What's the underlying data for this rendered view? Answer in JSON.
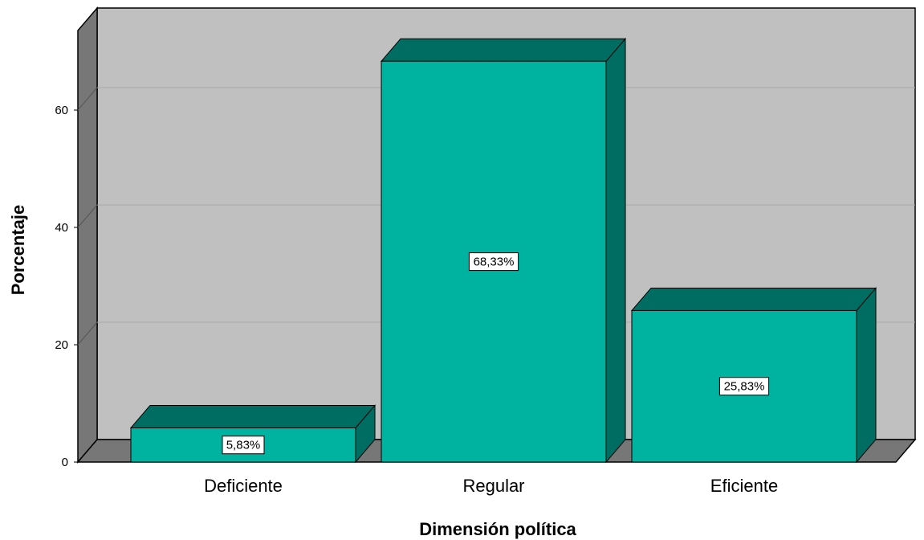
{
  "chart_data": {
    "type": "bar",
    "title": "",
    "xlabel": "Dimensión política",
    "ylabel": "Porcentaje",
    "categories": [
      "Deficiente",
      "Regular",
      "Eficiente"
    ],
    "values": [
      5.83,
      68.33,
      25.83
    ],
    "data_labels": [
      "5,83%",
      "68,33%",
      "25,83%"
    ],
    "yticks": [
      0,
      20,
      40,
      60
    ],
    "ylim": [
      0,
      75
    ],
    "grid": true,
    "style": "3d",
    "colors": {
      "bar_front": "#00b3a0",
      "bar_top": "#006d62",
      "bar_side": "#006d62",
      "wall_back": "#c0c0c0",
      "wall_side": "#777777",
      "floor": "#777777",
      "grid": "#a8a8a8"
    }
  }
}
